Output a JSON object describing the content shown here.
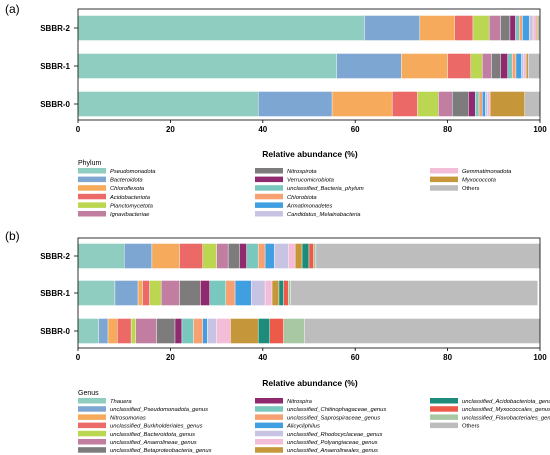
{
  "chart_data": [
    {
      "type": "bar",
      "orientation": "horizontal",
      "stacked": true,
      "panel_label": "(a)",
      "title": "",
      "xlabel": "Relative abundance (%)",
      "ylabel": "",
      "xlim": [
        0,
        100
      ],
      "x_ticks": [
        "0",
        "20",
        "40",
        "60",
        "80",
        "100"
      ],
      "categories": [
        "SBBR-2",
        "SBBR-1",
        "SBBR-0"
      ],
      "legend_title": "Phylum",
      "legend_position": "bottom",
      "series": [
        {
          "name": "Pseudomonadota",
          "color": "#8fcdc0",
          "values": [
            62.0,
            56.0,
            39.0
          ]
        },
        {
          "name": "Bacteroidota",
          "color": "#7ea6d3",
          "values": [
            12.0,
            14.0,
            16.0
          ]
        },
        {
          "name": "Chloroflexota",
          "color": "#f5aa5c",
          "values": [
            7.5,
            10.0,
            13.0
          ]
        },
        {
          "name": "Acidobacteriota",
          "color": "#eb6a68",
          "values": [
            4.0,
            5.0,
            5.5
          ]
        },
        {
          "name": "Planctomycetota",
          "color": "#bbd650",
          "values": [
            3.5,
            2.5,
            4.5
          ]
        },
        {
          "name": "Ignavibacteriae",
          "color": "#c27ea0",
          "values": [
            2.5,
            2.0,
            3.0
          ]
        },
        {
          "name": "Nitrospirota",
          "color": "#7d7b7b",
          "values": [
            2.0,
            2.0,
            3.5
          ]
        },
        {
          "name": "Verrucomicrobiota",
          "color": "#8f2a6e",
          "values": [
            1.2,
            1.5,
            1.5
          ]
        },
        {
          "name": "unclassified_Bacteria_phylum",
          "color": "#79c8bd",
          "values": [
            0.8,
            1.0,
            0.8
          ]
        },
        {
          "name": "Chlorobiota",
          "color": "#f7a072",
          "values": [
            0.7,
            0.8,
            0.7
          ]
        },
        {
          "name": "Armatimonadetes",
          "color": "#3f9fe0",
          "values": [
            1.5,
            1.2,
            0.7
          ]
        },
        {
          "name": "Candidatus_Melainabacteria",
          "color": "#c9c3e3",
          "values": [
            0.8,
            0.5,
            0.5
          ]
        },
        {
          "name": "Gemmatimonadota",
          "color": "#f3bcd7",
          "values": [
            0.7,
            0.5,
            0.5
          ]
        },
        {
          "name": "Myxococcota",
          "color": "#c6963a",
          "values": [
            0.3,
            0.5,
            7.5
          ]
        },
        {
          "name": "Others",
          "color": "#bdbdbd",
          "values": [
            0.5,
            2.5,
            3.3
          ]
        }
      ]
    },
    {
      "type": "bar",
      "orientation": "horizontal",
      "stacked": true,
      "panel_label": "(b)",
      "title": "",
      "xlabel": "Relative abundance (%)",
      "ylabel": "",
      "xlim": [
        0,
        100
      ],
      "x_ticks": [
        "0",
        "20",
        "40",
        "60",
        "80",
        "100"
      ],
      "categories": [
        "SBBR-2",
        "SBBR-1",
        "SBBR-0"
      ],
      "legend_title": "Genus",
      "legend_position": "bottom",
      "series": [
        {
          "name": "Thauera",
          "color": "#8fcdc0",
          "values": [
            10.0,
            8.0,
            4.5
          ]
        },
        {
          "name": "unclassified_Pseudomonadota_genus",
          "color": "#7ea6d3",
          "values": [
            6.0,
            5.0,
            2.0
          ]
        },
        {
          "name": "Nitrosomonas",
          "color": "#f5aa5c",
          "values": [
            6.0,
            1.0,
            2.0
          ]
        },
        {
          "name": "unclassified_Burkholderiales_genus",
          "color": "#eb6a68",
          "values": [
            5.0,
            1.5,
            3.0
          ]
        },
        {
          "name": "unclassified_Bacteroidota_genus",
          "color": "#bbd650",
          "values": [
            3.0,
            2.5,
            1.0
          ]
        },
        {
          "name": "unclassified_Anaerolineae_genus",
          "color": "#c27ea0",
          "values": [
            2.5,
            4.0,
            4.5
          ]
        },
        {
          "name": "unclassified_Betaproteobacteria_genus",
          "color": "#7d7b7b",
          "values": [
            2.5,
            4.5,
            4.0
          ]
        },
        {
          "name": "Nitrospira",
          "color": "#8f2a6e",
          "values": [
            1.5,
            2.0,
            1.5
          ]
        },
        {
          "name": "unclassified_Chitinophagaceae_genus",
          "color": "#79c8bd",
          "values": [
            2.5,
            3.5,
            2.5
          ]
        },
        {
          "name": "unclassified_Saprospiraceae_genus",
          "color": "#f7a072",
          "values": [
            1.5,
            2.0,
            2.0
          ]
        },
        {
          "name": "Alicycliphilus",
          "color": "#3f9fe0",
          "values": [
            2.0,
            3.5,
            1.0
          ]
        },
        {
          "name": "unclassified_Rhodocyclaceae_genus",
          "color": "#c9c3e3",
          "values": [
            3.0,
            3.0,
            2.0
          ]
        },
        {
          "name": "unclassified_Polyangiaceae_genus",
          "color": "#f3bcd7",
          "values": [
            1.5,
            1.5,
            3.0
          ]
        },
        {
          "name": "unclassified_Anaerolineales_genus",
          "color": "#c6963a",
          "values": [
            1.5,
            1.5,
            6.0
          ]
        },
        {
          "name": "unclassified_Acidobacteriota_genus",
          "color": "#1e8c7a",
          "values": [
            1.5,
            1.0,
            2.5
          ]
        },
        {
          "name": "unclassified_Myxococcales_genus",
          "color": "#ee5a4a",
          "values": [
            1.0,
            1.0,
            3.0
          ]
        },
        {
          "name": "unclassified_Flavobacteriales_genus",
          "color": "#a8c8a3",
          "values": [
            0.5,
            0.5,
            4.5
          ]
        },
        {
          "name": "Others",
          "color": "#bdbdbd",
          "values": [
            48.5,
            53.5,
            51.0
          ]
        }
      ]
    }
  ]
}
